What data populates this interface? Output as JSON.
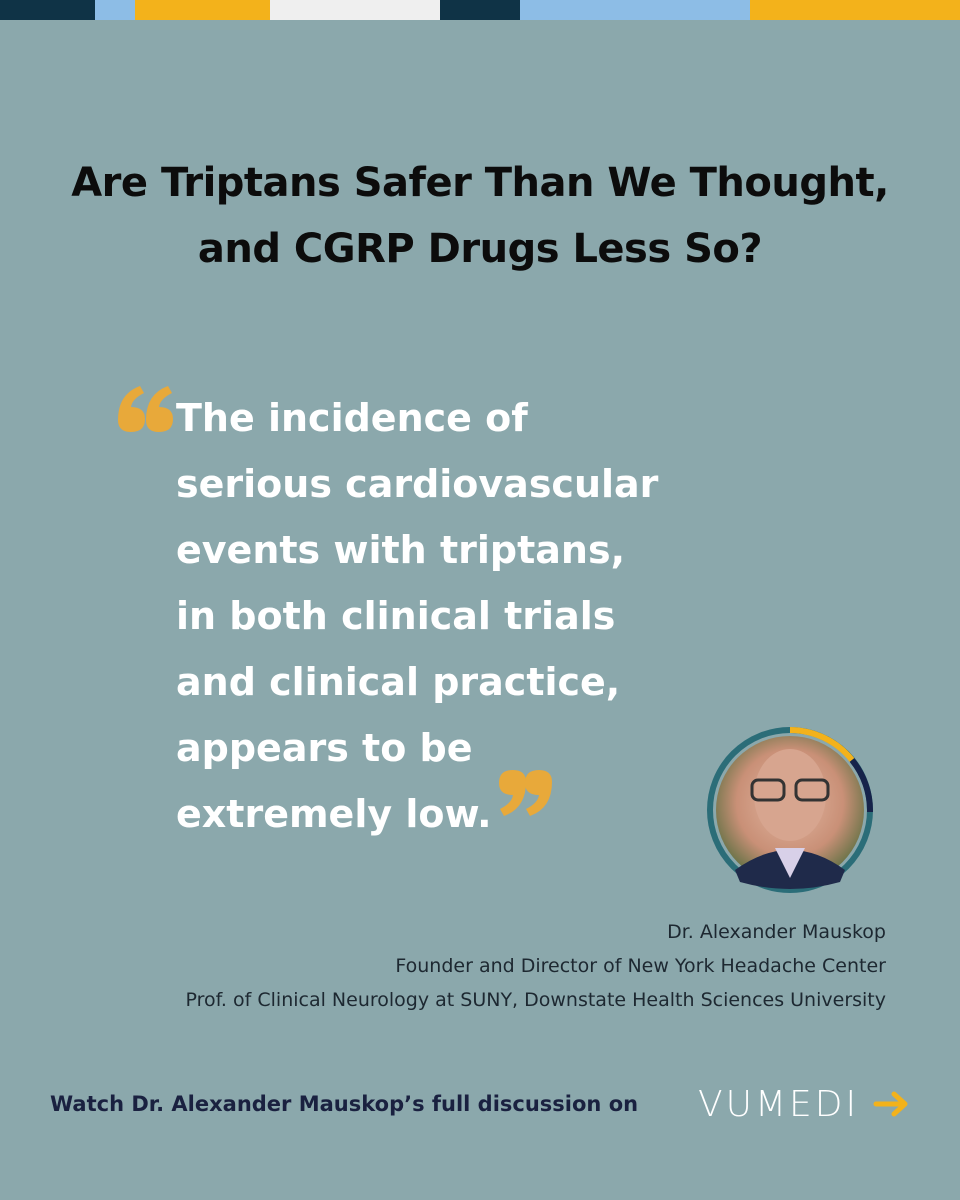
{
  "header": {
    "title_lines": [
      "Are Triptans Safer Than We Thought,",
      "and CGRP Drugs Less So?"
    ]
  },
  "quote": {
    "lines": [
      "The incidence of",
      "serious cardiovascular",
      "events with triptans,",
      "in both clinical trials",
      "and clinical practice,",
      "appears to be",
      "extremely low."
    ]
  },
  "attribution": {
    "name": "Dr. Alexander Mauskop",
    "role": "Founder and Director of New York Headache Center",
    "affiliation": "Prof. of Clinical Neurology at SUNY, Downstate Health Sciences University"
  },
  "footer": {
    "cta": "Watch Dr. Alexander Mauskop’s full discussion on",
    "brand": "VUMEDI"
  }
}
